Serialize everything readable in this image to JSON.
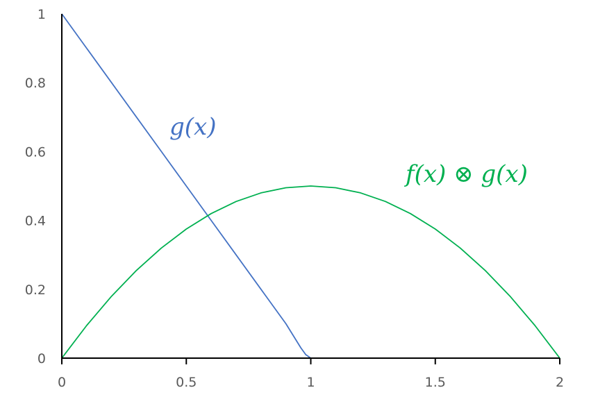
{
  "chart_data": {
    "type": "line",
    "title": "",
    "xlabel": "",
    "ylabel": "",
    "xlim": [
      0,
      2
    ],
    "ylim": [
      0,
      1
    ],
    "x_ticks": [
      "0",
      "0.5",
      "1",
      "1.5",
      "2"
    ],
    "y_ticks": [
      "0",
      "0.2",
      "0.4",
      "0.6",
      "0.8",
      "1"
    ],
    "grid": false,
    "series": [
      {
        "name": "g(x)",
        "color": "#4472C4",
        "x": [
          0,
          0.1,
          0.2,
          0.3,
          0.4,
          0.5,
          0.6,
          0.7,
          0.8,
          0.9,
          0.93,
          0.96,
          0.98,
          1.0,
          1.2,
          1.5,
          2.0
        ],
        "y": [
          1,
          0.9,
          0.8,
          0.7,
          0.6,
          0.5,
          0.4,
          0.3,
          0.2,
          0.1,
          0.065,
          0.03,
          0.01,
          0,
          0,
          0,
          0
        ]
      },
      {
        "name": "f(x) ⊗ g(x)",
        "color": "#00B050",
        "x": [
          0,
          0.1,
          0.2,
          0.3,
          0.4,
          0.5,
          0.6,
          0.7,
          0.8,
          0.9,
          1.0,
          1.1,
          1.2,
          1.3,
          1.4,
          1.5,
          1.6,
          1.7,
          1.8,
          1.9,
          2.0
        ],
        "y": [
          0,
          0.095,
          0.18,
          0.255,
          0.32,
          0.375,
          0.42,
          0.455,
          0.48,
          0.495,
          0.5,
          0.495,
          0.48,
          0.455,
          0.42,
          0.375,
          0.32,
          0.255,
          0.18,
          0.095,
          0
        ]
      }
    ]
  }
}
